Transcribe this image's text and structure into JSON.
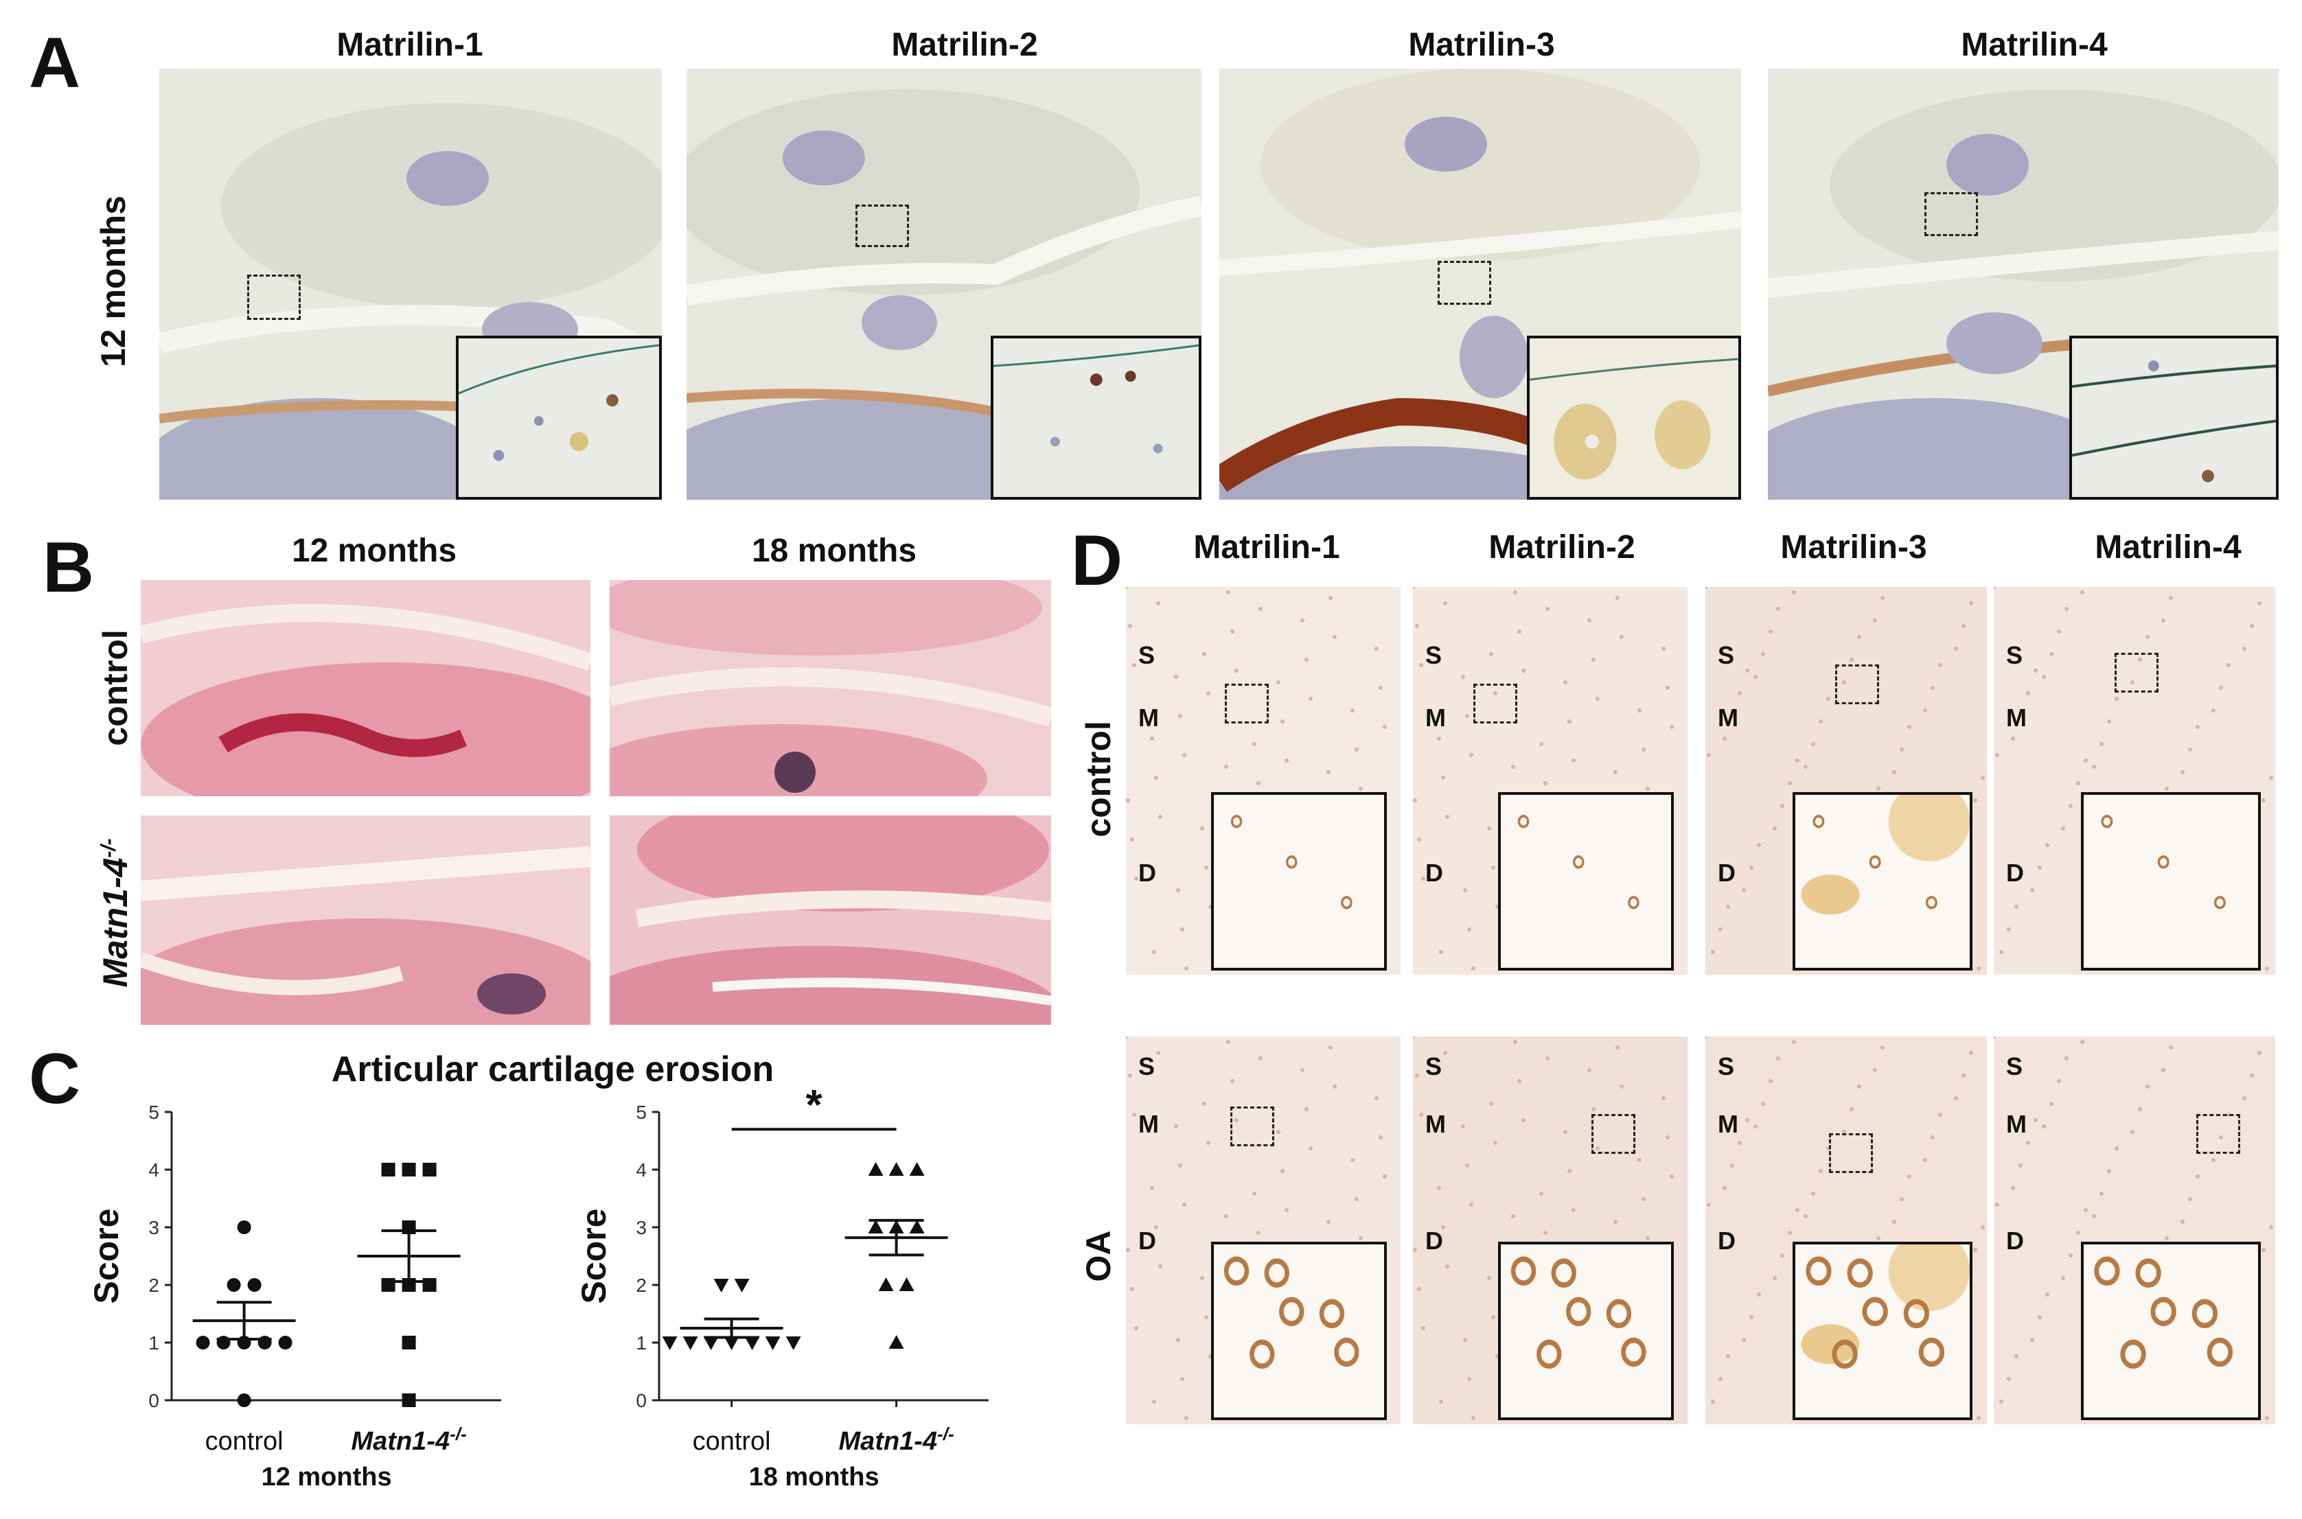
{
  "panel_letters": {
    "a": "A",
    "b": "B",
    "c": "C",
    "d": "D"
  },
  "panel_a": {
    "row_label": "12 months",
    "columns": [
      "Matrilin-1",
      "Matrilin-2",
      "Matrilin-3",
      "Matrilin-4"
    ]
  },
  "panel_b": {
    "columns": [
      "12 months",
      "18 months"
    ],
    "rows": [
      {
        "label": "control",
        "sup": ""
      },
      {
        "label": "Matn1-4",
        "sup": "-/-"
      }
    ]
  },
  "panel_c": {
    "title": "Articular cartilage erosion",
    "significance": "*"
  },
  "panel_d": {
    "columns": [
      "Matrilin-1",
      "Matrilin-2",
      "Matrilin-3",
      "Matrilin-4"
    ],
    "rows": [
      "control",
      "OA"
    ],
    "zones": {
      "s": "S",
      "m": "M",
      "d": "D"
    }
  },
  "chart_data": [
    {
      "type": "scatter",
      "title": "Articular cartilage erosion",
      "xlabel": "12 months",
      "ylabel": "Score",
      "ylim": [
        0,
        5
      ],
      "yticks": [
        "0",
        "1",
        "2",
        "3",
        "4",
        "5"
      ],
      "categories": [
        "control",
        "Matn1-4-/-"
      ],
      "category_labels": [
        {
          "text": "control",
          "sup": ""
        },
        {
          "text": "Matn1-4",
          "sup": "-/-"
        }
      ],
      "series": [
        {
          "marker": "circle",
          "values": [
            0,
            1,
            1,
            1,
            1,
            1,
            2,
            2,
            3
          ],
          "mean": 1.38,
          "sem": 0.32
        },
        {
          "marker": "square",
          "values": [
            0,
            1,
            2,
            2,
            2,
            3,
            4,
            4,
            4
          ],
          "mean": 2.5,
          "sem": 0.44
        }
      ]
    },
    {
      "type": "scatter",
      "xlabel": "18 months",
      "ylabel": "Score",
      "ylim": [
        0,
        5
      ],
      "yticks": [
        "0",
        "1",
        "2",
        "3",
        "4",
        "5"
      ],
      "categories": [
        "control",
        "Matn1-4-/-"
      ],
      "category_labels": [
        {
          "text": "control",
          "sup": ""
        },
        {
          "text": "Matn1-4",
          "sup": "-/-"
        }
      ],
      "series": [
        {
          "marker": "triangle-down",
          "values": [
            1,
            1,
            1,
            1,
            1,
            1,
            1,
            2,
            2
          ],
          "mean": 1.25,
          "sem": 0.16
        },
        {
          "marker": "triangle-up",
          "values": [
            1,
            2,
            2,
            3,
            3,
            3,
            4,
            4,
            4
          ],
          "mean": 2.82,
          "sem": 0.3
        }
      ],
      "significance": "*"
    }
  ]
}
